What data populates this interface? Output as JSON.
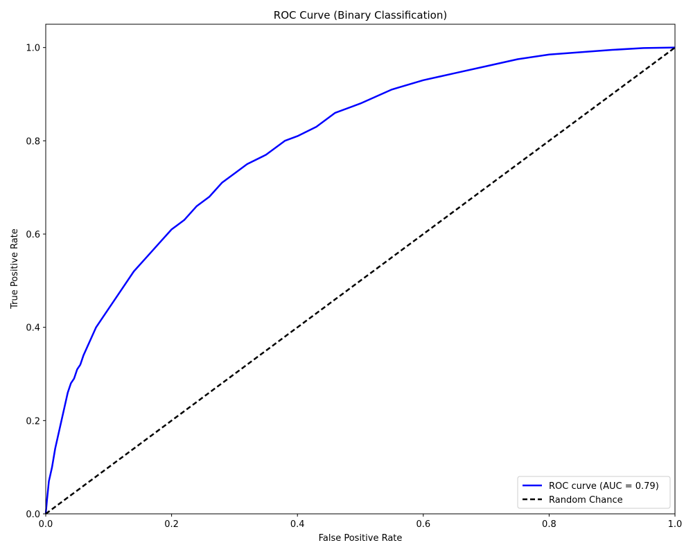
{
  "chart_data": {
    "type": "line",
    "title": "ROC Curve (Binary Classification)",
    "xlabel": "False Positive Rate",
    "ylabel": "True Positive Rate",
    "xlim": [
      0.0,
      1.0
    ],
    "ylim": [
      0.0,
      1.05
    ],
    "xticks": [
      0.0,
      0.2,
      0.4,
      0.6,
      0.8,
      1.0
    ],
    "xtick_labels": [
      "0.0",
      "0.2",
      "0.4",
      "0.6",
      "0.8",
      "1.0"
    ],
    "yticks": [
      0.0,
      0.2,
      0.4,
      0.6,
      0.8,
      1.0
    ],
    "ytick_labels": [
      "0.0",
      "0.2",
      "0.4",
      "0.6",
      "0.8",
      "1.0"
    ],
    "grid": false,
    "legend_position": "lower right",
    "series": [
      {
        "name": "ROC curve (AUC = 0.79)",
        "color": "#0000ff",
        "style": "solid",
        "x": [
          0.0,
          0.002,
          0.005,
          0.01,
          0.015,
          0.02,
          0.025,
          0.03,
          0.035,
          0.04,
          0.045,
          0.05,
          0.055,
          0.06,
          0.07,
          0.08,
          0.09,
          0.1,
          0.12,
          0.14,
          0.16,
          0.18,
          0.2,
          0.22,
          0.24,
          0.26,
          0.28,
          0.3,
          0.32,
          0.35,
          0.38,
          0.4,
          0.43,
          0.46,
          0.5,
          0.55,
          0.6,
          0.65,
          0.7,
          0.75,
          0.8,
          0.85,
          0.9,
          0.95,
          1.0
        ],
        "y": [
          0.0,
          0.03,
          0.07,
          0.1,
          0.14,
          0.17,
          0.2,
          0.23,
          0.26,
          0.28,
          0.29,
          0.31,
          0.32,
          0.34,
          0.37,
          0.4,
          0.42,
          0.44,
          0.48,
          0.52,
          0.55,
          0.58,
          0.61,
          0.63,
          0.66,
          0.68,
          0.71,
          0.73,
          0.75,
          0.77,
          0.8,
          0.81,
          0.83,
          0.86,
          0.88,
          0.91,
          0.93,
          0.945,
          0.96,
          0.975,
          0.985,
          0.99,
          0.995,
          0.999,
          1.0
        ]
      },
      {
        "name": "Random Chance",
        "color": "#000000",
        "style": "dashed",
        "x": [
          0.0,
          1.0
        ],
        "y": [
          0.0,
          1.0
        ]
      }
    ]
  }
}
